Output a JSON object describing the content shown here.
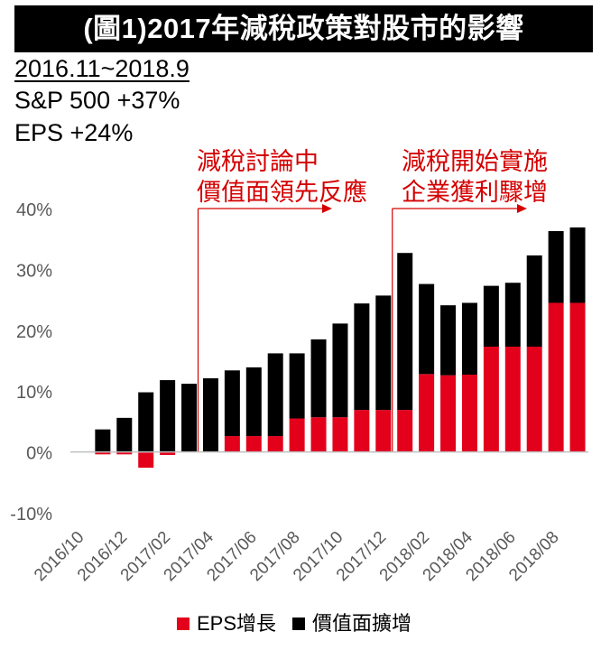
{
  "header": {
    "title": "(圖1)2017年減稅政策對股市的影響",
    "period": "2016.11~2018.9",
    "sp500": "S&P 500 +37%",
    "eps": "EPS  +24%"
  },
  "annotations": [
    {
      "line1": "減稅討論中",
      "line2": "價值面領先反應"
    },
    {
      "line1": "減稅開始實施",
      "line2": "企業獲利驟增"
    }
  ],
  "colors": {
    "eps": "#e3001b",
    "valuation": "#000000",
    "annotation": "#d40000"
  },
  "chart_data": {
    "type": "bar",
    "stacked": true,
    "categories": [
      "2016/10",
      "2016/11",
      "2016/12",
      "2017/01",
      "2017/02",
      "2017/03",
      "2017/04",
      "2017/05",
      "2017/06",
      "2017/07",
      "2017/08",
      "2017/09",
      "2017/10",
      "2017/11",
      "2017/12",
      "2018/01",
      "2018/02",
      "2018/03",
      "2018/04",
      "2018/05",
      "2018/06",
      "2018/07",
      "2018/08",
      "2018/09"
    ],
    "tick_labels": [
      "2016/10",
      "",
      "2016/12",
      "",
      "2017/02",
      "",
      "2017/04",
      "",
      "2017/06",
      "",
      "2017/08",
      "",
      "2017/10",
      "",
      "2017/12",
      "",
      "2018/02",
      "",
      "2018/04",
      "",
      "2018/06",
      "",
      "2018/08",
      ""
    ],
    "series": [
      {
        "name": "EPS增長",
        "values": [
          null,
          -0.4,
          -0.4,
          -2.6,
          -0.5,
          0,
          0,
          2.6,
          2.6,
          2.6,
          5.5,
          5.7,
          5.7,
          6.9,
          6.9,
          6.9,
          12.8,
          12.6,
          12.7,
          17.3,
          17.3,
          17.3,
          24.5,
          24.5
        ]
      },
      {
        "name": "價值面擴增",
        "values": [
          null,
          3.7,
          5.6,
          9.8,
          11.8,
          11.2,
          12.1,
          10.8,
          11.3,
          13.6,
          10.7,
          12.8,
          15.4,
          17.5,
          18.8,
          25.8,
          14.8,
          11.5,
          11.8,
          10.0,
          10.5,
          15.0,
          11.8,
          12.4
        ]
      }
    ],
    "ylim": [
      -10,
      40
    ],
    "yticks": [
      -10,
      0,
      10,
      20,
      30,
      40
    ],
    "ytick_labels": [
      "-10%",
      "0%",
      "10%",
      "20%",
      "30%",
      "40%"
    ],
    "vertical_markers": [
      "2017/04",
      "2018/01"
    ],
    "grid": false,
    "legend_position": "bottom"
  }
}
